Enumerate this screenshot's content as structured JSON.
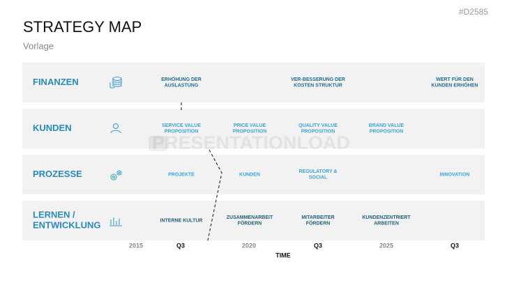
{
  "header": {
    "title": "STRATEGY MAP",
    "subtitle": "Vorlage",
    "code": "#D2585"
  },
  "watermark": "PRESENTATIONLOAD",
  "rows": [
    {
      "label": [
        "FINANZEN"
      ],
      "cells": [
        [
          "ERHÖHUNG DER",
          "AUSLASTUNG"
        ],
        null,
        [
          "VER-BESSERUNG DER",
          "KOSTEN STRUKTUR"
        ],
        null,
        [
          "WERT FÜR DEN",
          "KUNDEN ERHÖHEN"
        ]
      ]
    },
    {
      "label": [
        "KUNDEN"
      ],
      "cells": [
        [
          "SERVICE VALUE",
          "PROPOSITION"
        ],
        [
          "PRICE VALUE",
          "PROPOSITION"
        ],
        [
          "QUALITY VALUE",
          "PROPOSITION"
        ],
        [
          "BRAND VALUE",
          "PROPOSITION"
        ],
        null
      ]
    },
    {
      "label": [
        "PROZESSE"
      ],
      "cells": [
        [
          "PROJEKTE"
        ],
        [
          "KUNDEN"
        ],
        [
          "REGULATORY &",
          "SOCIAL"
        ],
        null,
        [
          "INNOVATION"
        ]
      ]
    },
    {
      "label": [
        "LERNEN /",
        "ENTWICKLUNG"
      ],
      "cells": [
        [
          "INTERNE KULTUR"
        ],
        [
          "ZUSAMMENARBEIT",
          "FÖRDERN"
        ],
        [
          "MITARBEITER",
          "FÖRDERN"
        ],
        [
          "KUNDENZENTRIERT",
          "ARBEITEN"
        ],
        null
      ]
    }
  ],
  "timeline": {
    "ticks": [
      "2015",
      "Q3",
      "2020",
      "Q3",
      "2025",
      "Q3"
    ],
    "label": "TIME"
  }
}
